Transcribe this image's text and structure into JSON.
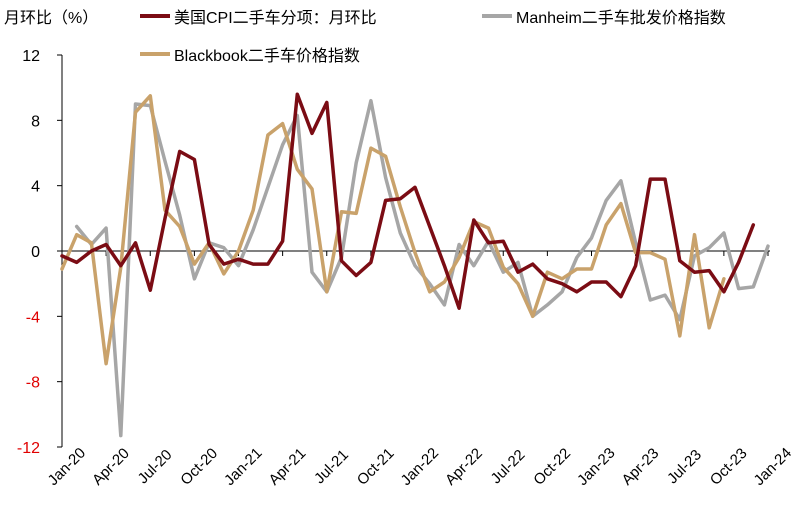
{
  "chart_data": {
    "type": "line",
    "ylabel": "月环比（%）",
    "ylim": [
      -12,
      12
    ],
    "yticks": [
      12,
      8,
      4,
      0,
      -4,
      -8,
      -12
    ],
    "negative_tick_color": "#e00000",
    "grid": false,
    "legend_position": "top",
    "x": [
      "Jan-20",
      "Feb-20",
      "Mar-20",
      "Apr-20",
      "May-20",
      "Jun-20",
      "Jul-20",
      "Aug-20",
      "Sep-20",
      "Oct-20",
      "Nov-20",
      "Dec-20",
      "Jan-21",
      "Feb-21",
      "Mar-21",
      "Apr-21",
      "May-21",
      "Jun-21",
      "Jul-21",
      "Aug-21",
      "Sep-21",
      "Oct-21",
      "Nov-21",
      "Dec-21",
      "Jan-22",
      "Feb-22",
      "Mar-22",
      "Apr-22",
      "May-22",
      "Jun-22",
      "Jul-22",
      "Aug-22",
      "Sep-22",
      "Oct-22",
      "Nov-22",
      "Dec-22",
      "Jan-23",
      "Feb-23",
      "Mar-23",
      "Apr-23",
      "May-23",
      "Jun-23",
      "Jul-23",
      "Aug-23",
      "Sep-23",
      "Oct-23",
      "Nov-23",
      "Dec-23",
      "Jan-24"
    ],
    "xtick_labels": [
      "Jan-20",
      "Apr-20",
      "Jul-20",
      "Oct-20",
      "Jan-21",
      "Apr-21",
      "Jul-21",
      "Oct-21",
      "Jan-22",
      "Apr-22",
      "Jul-22",
      "Oct-22",
      "Jan-23",
      "Apr-23",
      "Jul-23",
      "Oct-23",
      "Jan-24"
    ],
    "series": [
      {
        "name": "美国CPI二手车分项：月环比",
        "color": "#7b0c14",
        "values": [
          -0.3,
          -0.7,
          0.0,
          0.4,
          -0.9,
          0.5,
          -2.4,
          2.0,
          6.1,
          5.6,
          0.4,
          -0.8,
          -0.5,
          -0.8,
          -0.8,
          0.6,
          9.6,
          7.2,
          9.1,
          -0.6,
          -1.5,
          -0.7,
          3.1,
          3.2,
          3.9,
          1.5,
          -0.9,
          -3.5,
          1.9,
          0.5,
          0.6,
          -1.3,
          -0.8,
          -1.7,
          -2.0,
          -2.5,
          -1.9,
          -1.9,
          -2.8,
          -0.9,
          4.4,
          4.4,
          -0.6,
          -1.3,
          -1.2,
          -2.5,
          -0.7,
          1.6,
          null
        ]
      },
      {
        "name": "Manheim二手车批发价格指数",
        "color": "#a6a6a6",
        "values": [
          null,
          1.5,
          0.4,
          1.4,
          -11.3,
          9.0,
          8.9,
          5.5,
          2.2,
          -1.7,
          0.5,
          0.2,
          -0.9,
          1.3,
          3.9,
          6.5,
          8.3,
          -1.3,
          -2.5,
          -0.4,
          5.4,
          9.2,
          4.5,
          1.1,
          -0.9,
          -2.0,
          -3.3,
          0.4,
          -0.9,
          0.6,
          -1.3,
          -0.7,
          -4.0,
          -3.3,
          -2.5,
          -0.4,
          0.8,
          3.1,
          4.3,
          0.5,
          -3.0,
          -2.7,
          -4.2,
          -0.3,
          0.2,
          1.1,
          -2.3,
          -2.2,
          0.3
        ]
      },
      {
        "name": "Blackbook二手车价格指数",
        "color": "#c9a26b",
        "values": [
          -1.1,
          1.0,
          0.5,
          -6.9,
          -1.0,
          8.5,
          9.5,
          2.5,
          1.5,
          -0.8,
          0.5,
          -1.4,
          0.0,
          2.5,
          7.1,
          7.8,
          5.0,
          3.8,
          -2.5,
          2.4,
          2.3,
          6.3,
          5.8,
          2.7,
          -0.1,
          -2.5,
          -1.9,
          -0.4,
          1.8,
          1.4,
          -1.0,
          -2.0,
          -4.0,
          -1.3,
          -1.7,
          -1.1,
          -1.1,
          1.6,
          2.9,
          -0.1,
          -0.1,
          -0.5,
          -5.2,
          1.0,
          -4.7,
          -1.7,
          null,
          null,
          null
        ]
      }
    ]
  }
}
